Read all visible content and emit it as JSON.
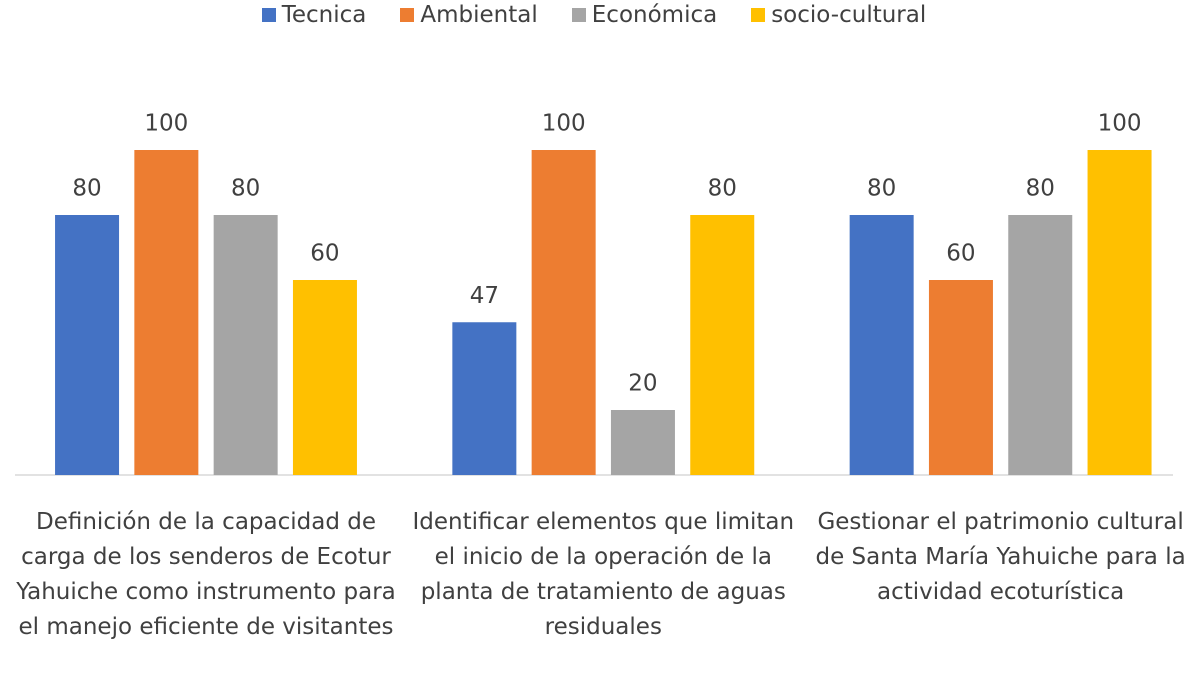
{
  "chart_data": {
    "type": "bar",
    "categories": [
      "Definición de la capacidad de carga de los senderos de Ecotur Yahuiche como instrumento para el manejo eficiente de visitantes",
      "Identificar elementos que limitan el inicio de la operación de la planta de tratamiento de aguas residuales",
      "Gestionar el patrimonio cultural de Santa María Yahuiche para la actividad ecoturística"
    ],
    "series": [
      {
        "name": "Tecnica",
        "color": "#4472c4",
        "values": [
          80,
          47,
          80
        ]
      },
      {
        "name": "Ambiental",
        "color": "#ed7d31",
        "values": [
          100,
          100,
          60
        ]
      },
      {
        "name": "Económica",
        "color": "#a5a5a5",
        "values": [
          80,
          20,
          80
        ]
      },
      {
        "name": "socio-cultural",
        "color": "#ffc000",
        "values": [
          60,
          80,
          100
        ]
      }
    ],
    "legend": "top"
  }
}
